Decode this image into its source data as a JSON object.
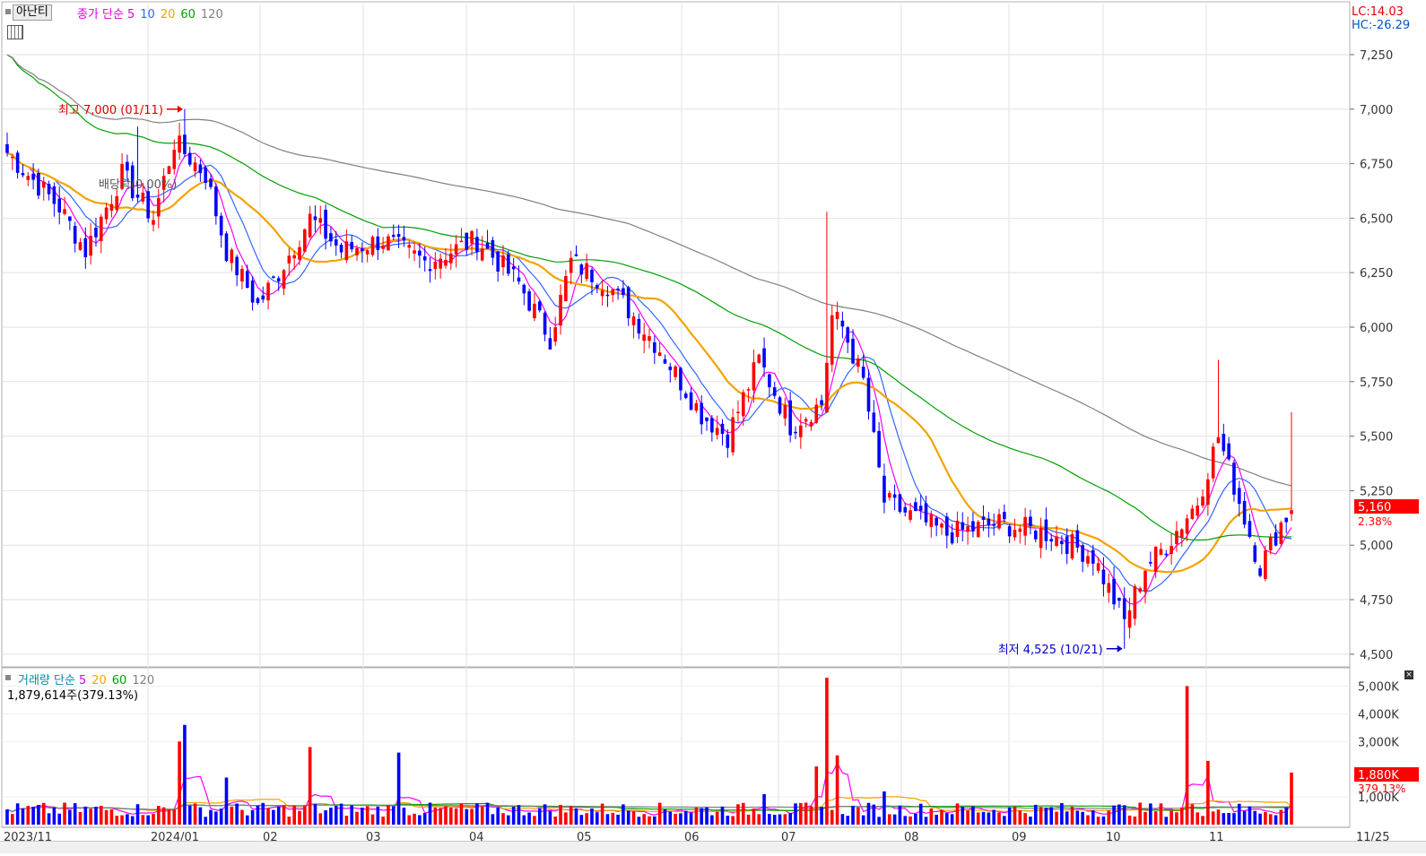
{
  "price_panel": {
    "button_label": "아난티",
    "legend": {
      "prefix": "종가 단순",
      "ma": [
        "5",
        "10",
        "20",
        "60",
        "120"
      ]
    },
    "lc_label": "LC:14.03",
    "hc_label": "HC:-26.29",
    "high_annotation": "최고 7,000 (01/11)",
    "low_annotation": "최저 4,525 (10/21)",
    "dividend_annotation": "배당락(0.00%)",
    "last_price_tag": "5,160",
    "last_change_tag": "2.38%"
  },
  "volume_panel": {
    "legend": {
      "prefix": "거래량 단순",
      "ma": [
        "5",
        "20",
        "60",
        "120"
      ]
    },
    "sub_label": "1,879,614주(379.13%)",
    "last_volume_tag": "1,880K",
    "last_ratio_tag": "379.13%"
  },
  "colors": {
    "up": "#ff0000",
    "down": "#0000ff",
    "ma5": "#ff00ff",
    "ma10": "#3366ff",
    "ma20": "#f4a300",
    "ma60": "#00a000",
    "ma120": "#808080",
    "legend_title": "#d00000",
    "volume_title": "#0088aa"
  },
  "chart_data": [
    {
      "type": "candlestick",
      "title": "",
      "y_axis_ticks": [
        "7,250",
        "7,000",
        "6,750",
        "6,500",
        "6,250",
        "6,000",
        "5,750",
        "5,500",
        "5,250",
        "5,000",
        "4,750",
        "4,500"
      ],
      "ylim": [
        4450,
        7480
      ],
      "x_axis_labels": [
        "2023/11",
        "2024/01",
        "02",
        "03",
        "04",
        "05",
        "06",
        "07",
        "08",
        "09",
        "10",
        "11",
        "11/25"
      ],
      "grid": true,
      "anchors_close": [
        [
          0,
          6800
        ],
        [
          10,
          6550
        ],
        [
          15,
          6350
        ],
        [
          22,
          6700
        ],
        [
          28,
          6500
        ],
        [
          32,
          6850
        ],
        [
          38,
          6700
        ],
        [
          42,
          6350
        ],
        [
          48,
          6100
        ],
        [
          52,
          6250
        ],
        [
          58,
          6500
        ],
        [
          64,
          6350
        ],
        [
          72,
          6400
        ],
        [
          80,
          6300
        ],
        [
          90,
          6400
        ],
        [
          98,
          6200
        ],
        [
          104,
          5950
        ],
        [
          108,
          6300
        ],
        [
          115,
          6200
        ],
        [
          125,
          5900
        ],
        [
          133,
          5600
        ],
        [
          138,
          5500
        ],
        [
          144,
          5850
        ],
        [
          150,
          5550
        ],
        [
          156,
          5650
        ],
        [
          158,
          6050
        ],
        [
          160,
          6000
        ],
        [
          164,
          5750
        ],
        [
          168,
          5200
        ],
        [
          172,
          5150
        ],
        [
          180,
          5050
        ],
        [
          190,
          5100
        ],
        [
          200,
          5050
        ],
        [
          208,
          4950
        ],
        [
          214,
          4650
        ],
        [
          218,
          4900
        ],
        [
          222,
          5000
        ],
        [
          228,
          5200
        ],
        [
          232,
          5500
        ],
        [
          236,
          5200
        ],
        [
          240,
          4900
        ],
        [
          244,
          5100
        ],
        [
          246,
          5160
        ]
      ],
      "extremes": {
        "high": 7000,
        "high_date": "01/11",
        "low": 4525,
        "low_date": "10/21"
      },
      "last": {
        "close": 5160,
        "change_pct": 2.38
      },
      "moving_averages": [
        "5",
        "10",
        "20",
        "60",
        "120"
      ]
    },
    {
      "type": "bar",
      "title": "",
      "y_axis_ticks": [
        "5,000K",
        "4,000K",
        "3,000K",
        "1,000K"
      ],
      "ylim": [
        0,
        5500
      ],
      "units": "K shares",
      "spikes": [
        [
          33,
          3000
        ],
        [
          34,
          3600
        ],
        [
          42,
          1700
        ],
        [
          58,
          2800
        ],
        [
          75,
          2600
        ],
        [
          145,
          1100
        ],
        [
          155,
          2100
        ],
        [
          157,
          5300
        ],
        [
          159,
          2500
        ],
        [
          168,
          1200
        ],
        [
          226,
          5000
        ],
        [
          230,
          2300
        ],
        [
          246,
          1880
        ]
      ],
      "last": {
        "volume": 1879614,
        "ratio_pct": 379.13
      },
      "moving_averages": [
        "5",
        "20",
        "60",
        "120"
      ]
    }
  ]
}
